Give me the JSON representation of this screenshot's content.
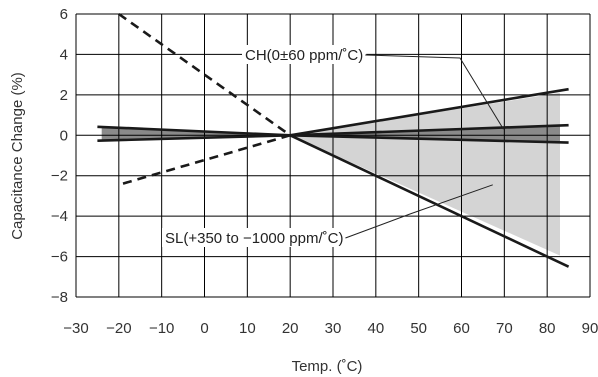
{
  "chart_data": {
    "type": "line",
    "xlabel": "Temp. (˚C)",
    "ylabel": "Capacitance Change (%)",
    "xlim": [
      -30,
      90
    ],
    "ylim": [
      -8,
      6
    ],
    "x_ticks": [
      "−30",
      "−20",
      "−10",
      "0",
      "10",
      "20",
      "30",
      "40",
      "50",
      "60",
      "70",
      "80",
      "90"
    ],
    "y_ticks": [
      "6",
      "4",
      "2",
      "0",
      "−2",
      "−4",
      "−6",
      "−8"
    ],
    "grid": true,
    "colors": {
      "line": "#1a1a1a",
      "sl_band": "#d4d4d4",
      "ch_band": "#8a8a8a",
      "grid": "#000000"
    },
    "series": [
      {
        "key": "sl_upper",
        "style": "solid",
        "x": [
          20,
          85
        ],
        "y": [
          0,
          2.28
        ]
      },
      {
        "key": "sl_lower",
        "style": "solid",
        "x": [
          20,
          85
        ],
        "y": [
          0,
          -6.5
        ]
      },
      {
        "key": "sl_dashed",
        "style": "dashed",
        "x": [
          -20,
          20,
          -20
        ],
        "y": [
          6.0,
          0,
          -2.45
        ]
      },
      {
        "key": "ch_upper",
        "style": "solid",
        "x": [
          -25,
          20,
          85
        ],
        "y": [
          0.42,
          0,
          0.5
        ]
      },
      {
        "key": "ch_lower",
        "style": "solid",
        "x": [
          -25,
          20,
          85
        ],
        "y": [
          -0.27,
          0,
          -0.36
        ]
      }
    ],
    "bands": [
      {
        "key": "sl_band",
        "x": [
          20,
          83,
          83
        ],
        "y": [
          0,
          2.1,
          -5.95
        ]
      },
      {
        "key": "ch_band_left",
        "x": [
          -24,
          20,
          -24
        ],
        "y": [
          0.42,
          0,
          -0.25
        ]
      },
      {
        "key": "ch_band_right",
        "x": [
          20,
          83,
          83
        ],
        "y": [
          0,
          0.48,
          -0.34
        ]
      }
    ],
    "annotations": [
      {
        "key": "ch_label",
        "text": "CH(0±60 ppm/˚C)",
        "target": [
          69.8,
          0.3
        ]
      },
      {
        "key": "sl_label",
        "text": "SL(+350 to −1000 ppm/˚C)",
        "target": [
          67.3,
          -2.45
        ]
      }
    ]
  }
}
